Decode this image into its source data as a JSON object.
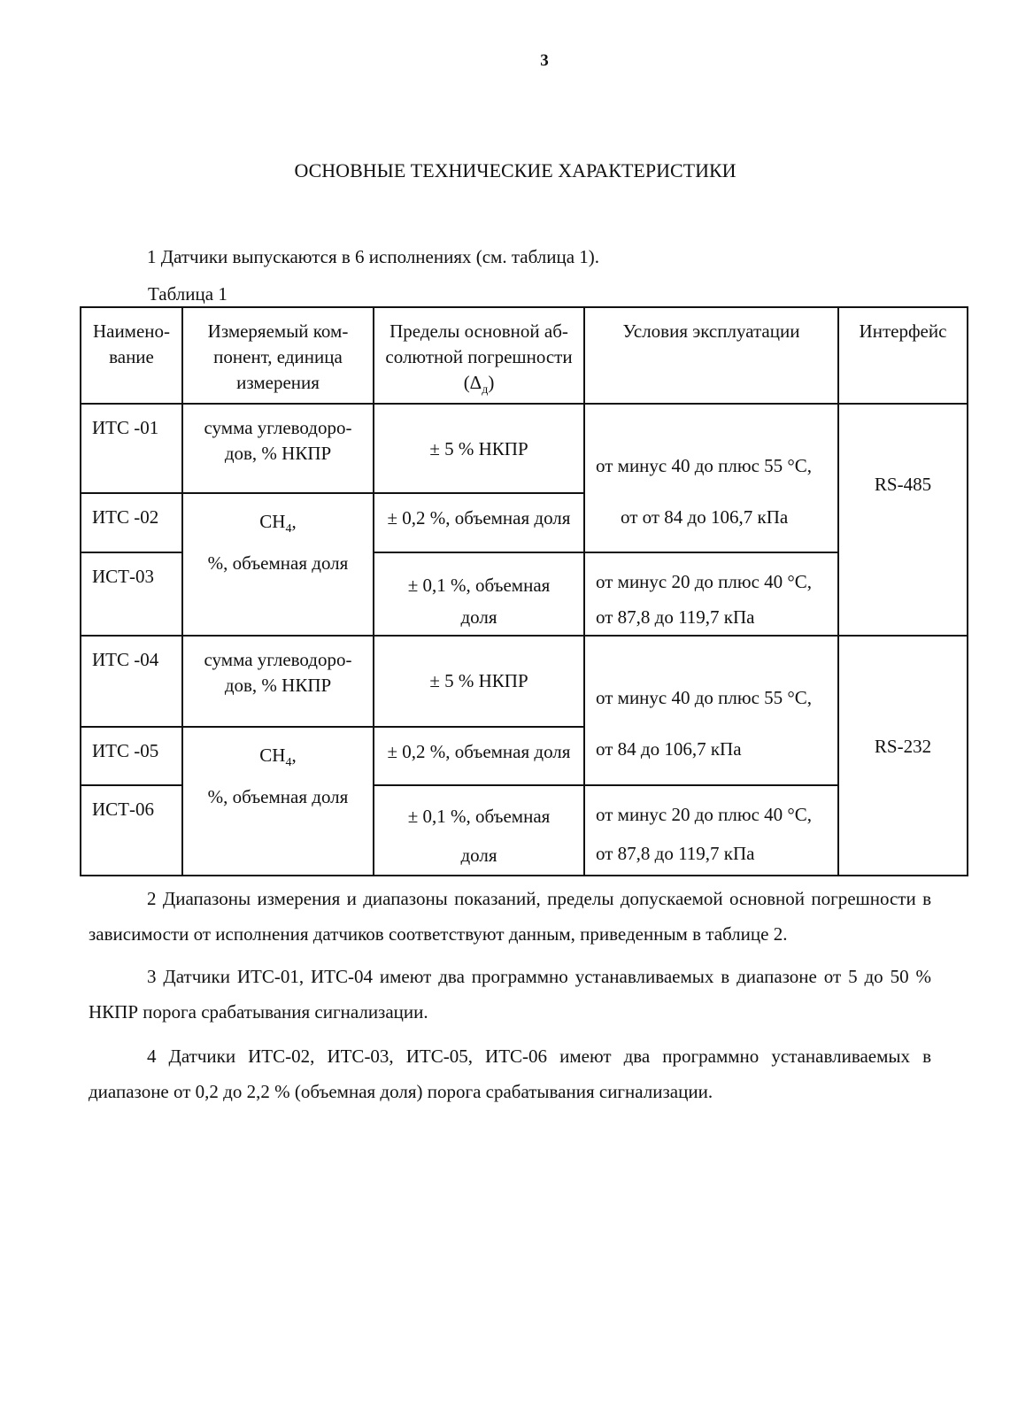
{
  "page_number": "3",
  "title": "ОСНОВНЫЕ ТЕХНИЧЕСКИЕ ХАРАКТЕРИСТИКИ",
  "paragraph1": "1 Датчики выпускаются в 6 исполнениях (см. таблица 1).",
  "table_caption": "Таблица 1",
  "table": {
    "headers": [
      "Наимено-вание",
      "Измеряемый ком-понент, единица измерения",
      "Пределы основной аб-солютной погрешности",
      "Условия эксплуатации",
      "Интерфейс"
    ],
    "header_delta": "(Δ",
    "header_delta_sub": "д",
    "header_delta_close": ")",
    "rows": [
      {
        "name": "ИТС -01",
        "component": "сумма углеводоро-дов, % НКПР",
        "error": "± 5 % НКПР"
      },
      {
        "name": "ИТС -02",
        "error": "± 0,2 %, объемная доля"
      },
      {
        "name": "ИСТ-03",
        "error": "± 0,1 %, объемная доля"
      },
      {
        "name": "ИТС -04",
        "component": "сумма углеводоро-дов, % НКПР",
        "error": "± 5 % НКПР"
      },
      {
        "name": "ИТС -05",
        "error": "± 0,2 %, объемная доля"
      },
      {
        "name": "ИСТ-06",
        "error": "± 0,1 %, объемная доля"
      }
    ],
    "ch4_component_a": "CH",
    "ch4_sub": "4",
    "ch4_component_b": ",",
    "ch4_unit": "%, объемная доля",
    "conditions": [
      {
        "line1": "от минус 40 до плюс 55 °C,",
        "line2": "от от 84  до 106,7 кПа"
      },
      {
        "line1": "от минус 20 до плюс 40 °C,",
        "line2": "от 87,8 до 119,7 кПа"
      },
      {
        "line1": "от минус 40 до плюс 55 °C,",
        "line2": "от 84  до 106,7 кПа"
      },
      {
        "line1": "от минус 20 до плюс 40 °C,",
        "line2": "от 87,8 до 119,7 кПа"
      }
    ],
    "interfaces": [
      "RS-485",
      "RS-232"
    ]
  },
  "paragraph2": "2 Диапазоны измерения  и диапазоны показаний, пределы допускаемой основной погрешности в зависимости от исполнения датчиков  соответствуют данным, приведенным в таблице 2.",
  "paragraph3": "3 Датчики ИТС-01, ИТС-04  имеют два программно устанавливаемых в диапазоне от 5 до 50 % НКПР порога срабатывания сигнализации.",
  "paragraph4": "4 Датчики ИТС-02, ИТС-03, ИТС-05, ИТС-06 имеют  два программно устанавливаемых в диапазоне от 0,2 до 2,2 % (объемная доля) порога срабатывания сигнализации."
}
